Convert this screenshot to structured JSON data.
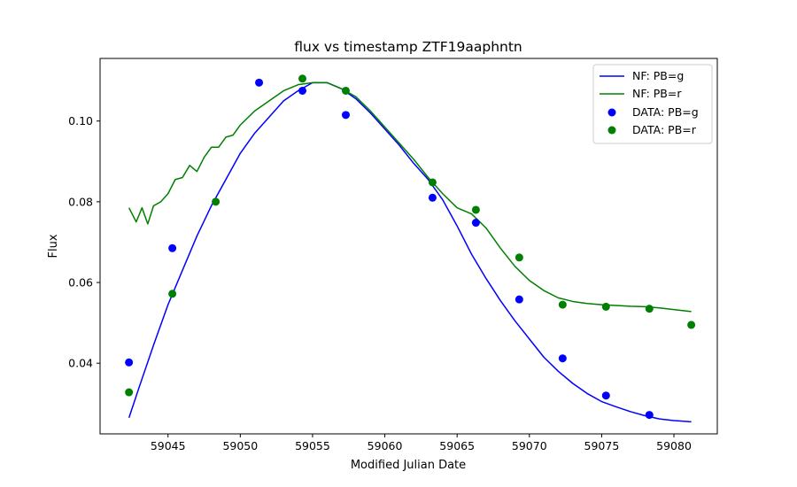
{
  "chart_data": {
    "type": "line",
    "title": "flux vs timestamp ZTF19aaphntn",
    "xlabel": "Modified Julian Date",
    "ylabel": "Flux",
    "xlim": [
      59040.3,
      59083.0
    ],
    "ylim": [
      0.0225,
      0.1155
    ],
    "xticks": [
      59045,
      59050,
      59055,
      59060,
      59065,
      59070,
      59075,
      59080
    ],
    "xtick_labels": [
      "59045",
      "59050",
      "59055",
      "59060",
      "59065",
      "59070",
      "59075",
      "59080"
    ],
    "yticks": [
      0.04,
      0.06,
      0.08,
      0.1
    ],
    "ytick_labels": [
      "0.04",
      "0.06",
      "0.08",
      "0.10"
    ],
    "grid": false,
    "legend_position": "top-right",
    "legend": [
      "NF: PB=g",
      "NF: PB=r",
      "DATA: PB=g",
      "DATA: PB=r"
    ],
    "colors": {
      "g": "#0000ff",
      "r": "#008000"
    },
    "series": [
      {
        "name": "NF: PB=g",
        "kind": "line",
        "color": "#0000ff",
        "x": [
          59042.3,
          59043.0,
          59044.0,
          59045.0,
          59046.0,
          59047.0,
          59048.0,
          59049.0,
          59050.0,
          59051.0,
          59052.0,
          59053.0,
          59054.0,
          59055.0,
          59056.0,
          59057.0,
          59058.0,
          59059.0,
          59060.0,
          59061.0,
          59062.0,
          59063.0,
          59064.0,
          59065.0,
          59066.0,
          59067.0,
          59068.0,
          59069.0,
          59070.0,
          59071.0,
          59072.0,
          59073.0,
          59074.0,
          59075.0,
          59076.0,
          59077.0,
          59078.0,
          59079.0,
          59080.0,
          59081.2
        ],
        "y": [
          0.0265,
          0.034,
          0.0445,
          0.0545,
          0.063,
          0.0715,
          0.079,
          0.0855,
          0.092,
          0.097,
          0.101,
          0.105,
          0.1075,
          0.1095,
          0.1095,
          0.108,
          0.1055,
          0.102,
          0.098,
          0.094,
          0.0895,
          0.0855,
          0.0805,
          0.074,
          0.067,
          0.061,
          0.0555,
          0.0505,
          0.046,
          0.0415,
          0.038,
          0.035,
          0.0325,
          0.0305,
          0.0292,
          0.028,
          0.027,
          0.0262,
          0.0258,
          0.0255
        ]
      },
      {
        "name": "NF: PB=r",
        "kind": "line",
        "color": "#008000",
        "x": [
          59042.3,
          59042.8,
          59043.2,
          59043.6,
          59044.0,
          59044.5,
          59045.0,
          59045.5,
          59046.0,
          59046.5,
          59047.0,
          59047.5,
          59048.0,
          59048.5,
          59049.0,
          59049.5,
          59050.0,
          59051.0,
          59052.0,
          59053.0,
          59054.0,
          59055.0,
          59056.0,
          59057.0,
          59058.0,
          59059.0,
          59060.0,
          59061.0,
          59062.0,
          59063.0,
          59064.0,
          59065.0,
          59066.0,
          59067.0,
          59068.0,
          59069.0,
          59070.0,
          59071.0,
          59072.0,
          59073.0,
          59074.0,
          59075.0,
          59076.0,
          59077.0,
          59078.0,
          59079.0,
          59080.0,
          59081.2
        ],
        "y": [
          0.0785,
          0.075,
          0.0785,
          0.0745,
          0.079,
          0.08,
          0.082,
          0.0855,
          0.086,
          0.089,
          0.0875,
          0.091,
          0.0935,
          0.0935,
          0.096,
          0.0965,
          0.099,
          0.1025,
          0.105,
          0.1075,
          0.109,
          0.1095,
          0.1095,
          0.108,
          0.106,
          0.1025,
          0.0985,
          0.0945,
          0.0905,
          0.086,
          0.082,
          0.0785,
          0.077,
          0.0735,
          0.0685,
          0.064,
          0.0605,
          0.058,
          0.0562,
          0.0553,
          0.0548,
          0.0545,
          0.0543,
          0.0541,
          0.054,
          0.0537,
          0.0533,
          0.0528
        ]
      },
      {
        "name": "DATA: PB=g",
        "kind": "scatter",
        "color": "#0000ff",
        "x": [
          59042.3,
          59045.3,
          59051.3,
          59054.3,
          59057.3,
          59063.3,
          59066.3,
          59069.3,
          59072.3,
          59075.3,
          59078.3
        ],
        "y": [
          0.0402,
          0.0685,
          0.1095,
          0.1075,
          0.1015,
          0.081,
          0.0748,
          0.0558,
          0.0412,
          0.032,
          0.0272
        ]
      },
      {
        "name": "DATA: PB=r",
        "kind": "scatter",
        "color": "#008000",
        "x": [
          59042.3,
          59045.3,
          59048.3,
          59054.3,
          59057.3,
          59063.3,
          59066.3,
          59069.3,
          59072.3,
          59075.3,
          59078.3,
          59081.2
        ],
        "y": [
          0.0328,
          0.0572,
          0.08,
          0.1105,
          0.1075,
          0.0848,
          0.078,
          0.0662,
          0.0545,
          0.054,
          0.0535,
          0.0495
        ]
      }
    ]
  }
}
